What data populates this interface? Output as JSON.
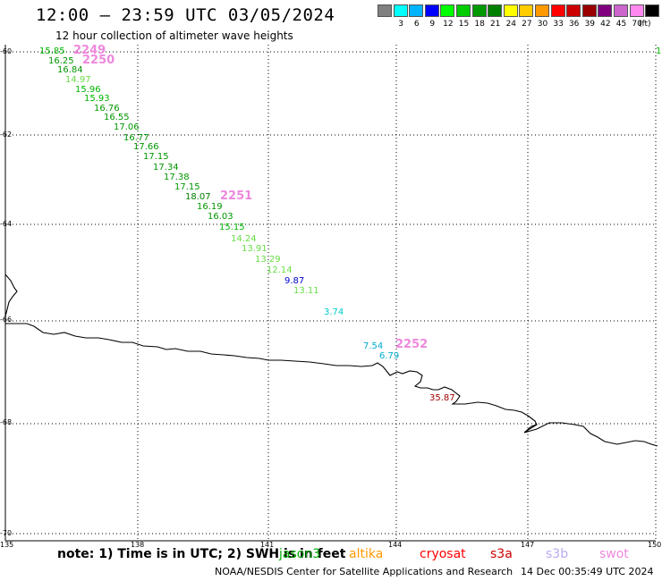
{
  "header": {
    "title": "12:00 – 23:59 UTC 03/05/2024",
    "subtitle": "12 hour collection of altimeter wave heights"
  },
  "legend": {
    "unit": "(ft)",
    "items": [
      {
        "label": "",
        "color": "#808080"
      },
      {
        "label": "3",
        "color": "#00ffff"
      },
      {
        "label": "6",
        "color": "#00b4ff"
      },
      {
        "label": "9",
        "color": "#0000ff"
      },
      {
        "label": "12",
        "color": "#00ff00"
      },
      {
        "label": "15",
        "color": "#00cc00"
      },
      {
        "label": "18",
        "color": "#009900"
      },
      {
        "label": "21",
        "color": "#008000"
      },
      {
        "label": "24",
        "color": "#ffff00"
      },
      {
        "label": "27",
        "color": "#ffcc00"
      },
      {
        "label": "30",
        "color": "#ff9900"
      },
      {
        "label": "33",
        "color": "#ff0000"
      },
      {
        "label": "36",
        "color": "#cc0000"
      },
      {
        "label": "39",
        "color": "#990000"
      },
      {
        "label": "42",
        "color": "#800080"
      },
      {
        "label": "45",
        "color": "#cc66cc"
      },
      {
        "label": "70",
        "color": "#ff88ee"
      },
      {
        "label": "",
        "color": "#000000"
      }
    ]
  },
  "axes": {
    "lat_labels": [
      "-60",
      "-62",
      "-64",
      "-66",
      "-68",
      "-70"
    ],
    "lon_labels": [
      "135",
      "138",
      "141",
      "144",
      "147",
      "150"
    ]
  },
  "observations": [
    {
      "v": "15.85",
      "color": "#00b400"
    },
    {
      "v": "16.25",
      "color": "#009600"
    },
    {
      "v": "16.84",
      "color": "#009600"
    },
    {
      "v": "14.97",
      "color": "#66dd44"
    },
    {
      "v": "15.96",
      "color": "#00b400"
    },
    {
      "v": "15.93",
      "color": "#00b400"
    },
    {
      "v": "16.76",
      "color": "#009600"
    },
    {
      "v": "16.55",
      "color": "#009600"
    },
    {
      "v": "17.06",
      "color": "#009600"
    },
    {
      "v": "16.77",
      "color": "#009600"
    },
    {
      "v": "17.66",
      "color": "#009600"
    },
    {
      "v": "17.15",
      "color": "#009600"
    },
    {
      "v": "17.34",
      "color": "#009600"
    },
    {
      "v": "17.38",
      "color": "#009600"
    },
    {
      "v": "17.15",
      "color": "#009600"
    },
    {
      "v": "18.07",
      "color": "#008000"
    },
    {
      "v": "16.19",
      "color": "#009600"
    },
    {
      "v": "16.03",
      "color": "#009600"
    },
    {
      "v": "15.15",
      "color": "#00b400"
    },
    {
      "v": "14.24",
      "color": "#66dd44"
    },
    {
      "v": "13.91",
      "color": "#66dd44"
    },
    {
      "v": "13.29",
      "color": "#66dd44"
    },
    {
      "v": "12.14",
      "color": "#66dd44"
    },
    {
      "v": "9.87",
      "color": "#0000cc"
    },
    {
      "v": "13.11",
      "color": "#66dd44"
    },
    {
      "v": "3.74",
      "color": "#00cccc"
    },
    {
      "v": "7.54",
      "color": "#00aacc"
    },
    {
      "v": "6.79",
      "color": "#00aacc"
    },
    {
      "v": "35.87",
      "color": "#990000"
    },
    {
      "v": "1",
      "color": "#00b400"
    }
  ],
  "time_tags": [
    "2249",
    "2250",
    "2251",
    "2252"
  ],
  "time_tag_color": "#ee88dd",
  "footer": {
    "note": "note: 1) Time is in UTC; 2) SWH is in feet",
    "missions": [
      {
        "name": "jason3",
        "color": "#00aa00"
      },
      {
        "name": "altika",
        "color": "#ff9900"
      },
      {
        "name": "cryosat",
        "color": "#ff0000"
      },
      {
        "name": "s3a",
        "color": "#cc0000"
      },
      {
        "name": "s3b",
        "color": "#bbaaee"
      },
      {
        "name": "swot",
        "color": "#ee88dd"
      }
    ],
    "credit": "NOAA/NESDIS Center for Satellite Applications and Research",
    "timestamp": "14 Dec 00:35:49 UTC 2024"
  }
}
